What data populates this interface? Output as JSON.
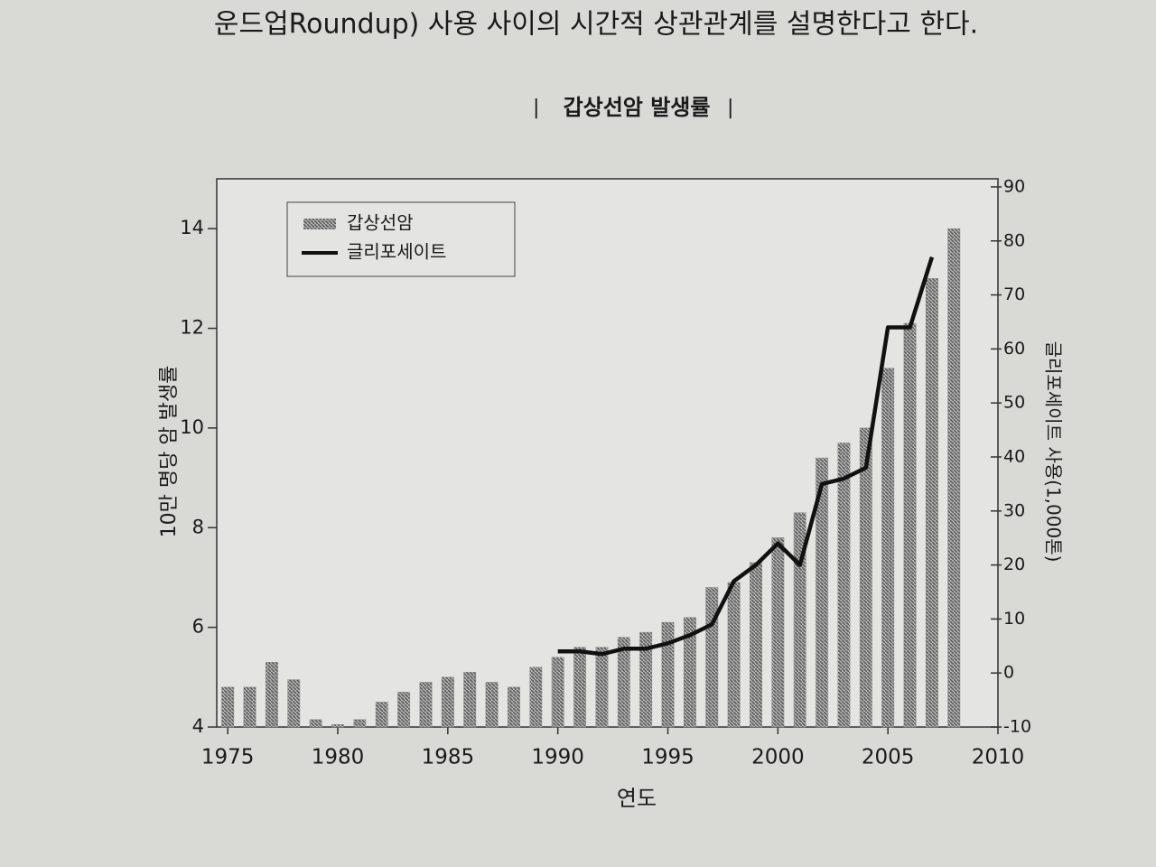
{
  "header": {
    "text": "운드업Roundup) 사용 사이의 시간적 상관관계를 설명한다고 한다."
  },
  "chart_data": {
    "type": "bar",
    "title": "갑상선암 발생률",
    "xlabel": "연도",
    "ylabel": "10만 명당 암 발생률",
    "y2label": "글리포세이트 사용(1,000톤)",
    "xlim": [
      1974.5,
      2010
    ],
    "xticks": [
      1975,
      1980,
      1985,
      1990,
      1995,
      2000,
      2005,
      2010
    ],
    "ylim": [
      4,
      15
    ],
    "yticks": [
      4,
      6,
      8,
      10,
      12,
      14
    ],
    "y2lim": [
      -10,
      91.5
    ],
    "y2ticks": [
      -10,
      0,
      10,
      20,
      30,
      40,
      50,
      60,
      70,
      80,
      90
    ],
    "legend": "upper left",
    "series": [
      {
        "name": "갑상선암",
        "type": "bar",
        "color": "#8c8c8c",
        "x": [
          1975,
          1976,
          1977,
          1978,
          1979,
          1980,
          1981,
          1982,
          1983,
          1984,
          1985,
          1986,
          1987,
          1988,
          1989,
          1990,
          1991,
          1992,
          1993,
          1994,
          1995,
          1996,
          1997,
          1998,
          1999,
          2000,
          2001,
          2002,
          2003,
          2004,
          2005,
          2006,
          2007,
          2008
        ],
        "values": [
          4.8,
          4.8,
          5.3,
          4.95,
          4.15,
          4.05,
          4.15,
          4.5,
          4.7,
          4.9,
          5.0,
          5.1,
          4.9,
          4.8,
          5.2,
          5.4,
          5.6,
          5.6,
          5.8,
          5.9,
          6.1,
          6.2,
          6.8,
          6.9,
          7.3,
          7.8,
          8.3,
          9.4,
          9.7,
          10.0,
          11.2,
          12.1,
          13.0,
          14.0
        ]
      },
      {
        "name": "글리포세이트",
        "type": "line",
        "axis": "y2",
        "color": "#111111",
        "x": [
          1990,
          1991,
          1992,
          1993,
          1994,
          1995,
          1996,
          1997,
          1998,
          1999,
          2000,
          2001,
          2002,
          2003,
          2004,
          2005,
          2006,
          2007
        ],
        "values": [
          4,
          4,
          3.5,
          4.5,
          4.5,
          5.5,
          7,
          9,
          17,
          20,
          24,
          20,
          35,
          36,
          38,
          64,
          64,
          77
        ]
      }
    ]
  }
}
